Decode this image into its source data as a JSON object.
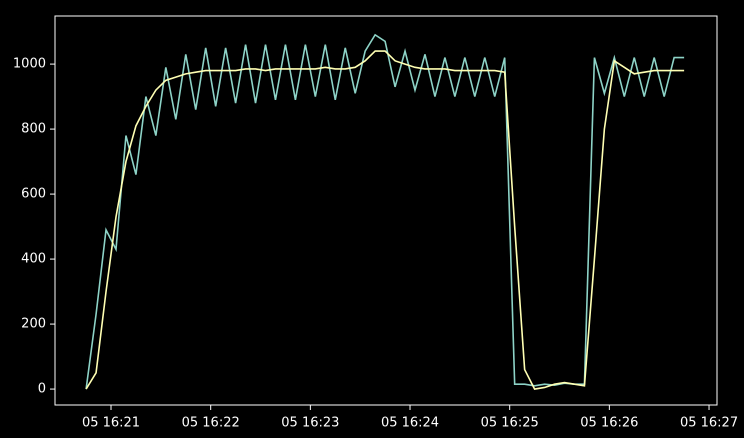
{
  "chart_data": {
    "type": "line",
    "x": [
      20.75,
      20.85,
      20.95,
      21.05,
      21.15,
      21.25,
      21.35,
      21.45,
      21.55,
      21.65,
      21.75,
      21.85,
      21.95,
      22.05,
      22.15,
      22.25,
      22.35,
      22.45,
      22.55,
      22.65,
      22.75,
      22.85,
      22.95,
      23.05,
      23.15,
      23.25,
      23.35,
      23.45,
      23.55,
      23.65,
      23.75,
      23.85,
      23.95,
      24.05,
      24.15,
      24.25,
      24.35,
      24.45,
      24.55,
      24.65,
      24.75,
      24.85,
      24.95,
      25.05,
      25.15,
      25.25,
      25.35,
      25.45,
      25.55,
      25.65,
      25.75,
      25.85,
      25.95,
      26.05,
      26.15,
      26.25,
      26.35,
      26.45,
      26.55,
      26.65,
      26.75
    ],
    "series": [
      {
        "color": "#8dd3c7",
        "values": [
          0,
          230,
          490,
          430,
          780,
          660,
          900,
          780,
          990,
          830,
          1030,
          860,
          1050,
          870,
          1050,
          880,
          1060,
          880,
          1060,
          890,
          1060,
          890,
          1060,
          900,
          1060,
          890,
          1050,
          910,
          1040,
          1090,
          1070,
          930,
          1040,
          920,
          1030,
          900,
          1020,
          900,
          1020,
          900,
          1020,
          900,
          1020,
          15,
          15,
          10,
          15,
          12,
          18,
          15,
          15,
          1020,
          910,
          1020,
          900,
          1020,
          900,
          1020,
          900,
          1020,
          1020
        ]
      },
      {
        "color": "#ffffb3",
        "values": [
          0,
          50,
          300,
          530,
          700,
          810,
          870,
          920,
          950,
          960,
          970,
          975,
          980,
          980,
          980,
          980,
          985,
          985,
          980,
          985,
          985,
          985,
          985,
          985,
          990,
          985,
          985,
          990,
          1010,
          1040,
          1040,
          1010,
          1000,
          990,
          985,
          985,
          985,
          980,
          980,
          980,
          980,
          980,
          975,
          500,
          60,
          0,
          5,
          15,
          20,
          15,
          10,
          400,
          800,
          1010,
          990,
          970,
          975,
          980,
          980,
          980,
          980
        ]
      }
    ],
    "xlim": [
      20.438,
      27.08
    ],
    "xticks": [
      {
        "value": 21,
        "label": "05 16:21"
      },
      {
        "value": 22,
        "label": "05 16:22"
      },
      {
        "value": 23,
        "label": "05 16:23"
      },
      {
        "value": 24,
        "label": "05 16:24"
      },
      {
        "value": 25,
        "label": "05 16:25"
      },
      {
        "value": 26,
        "label": "05 16:26"
      },
      {
        "value": 27,
        "label": "05 16:27"
      }
    ],
    "ylim": [
      -49,
      1148
    ],
    "yticks": [
      0,
      200,
      400,
      600,
      800,
      1000
    ]
  }
}
